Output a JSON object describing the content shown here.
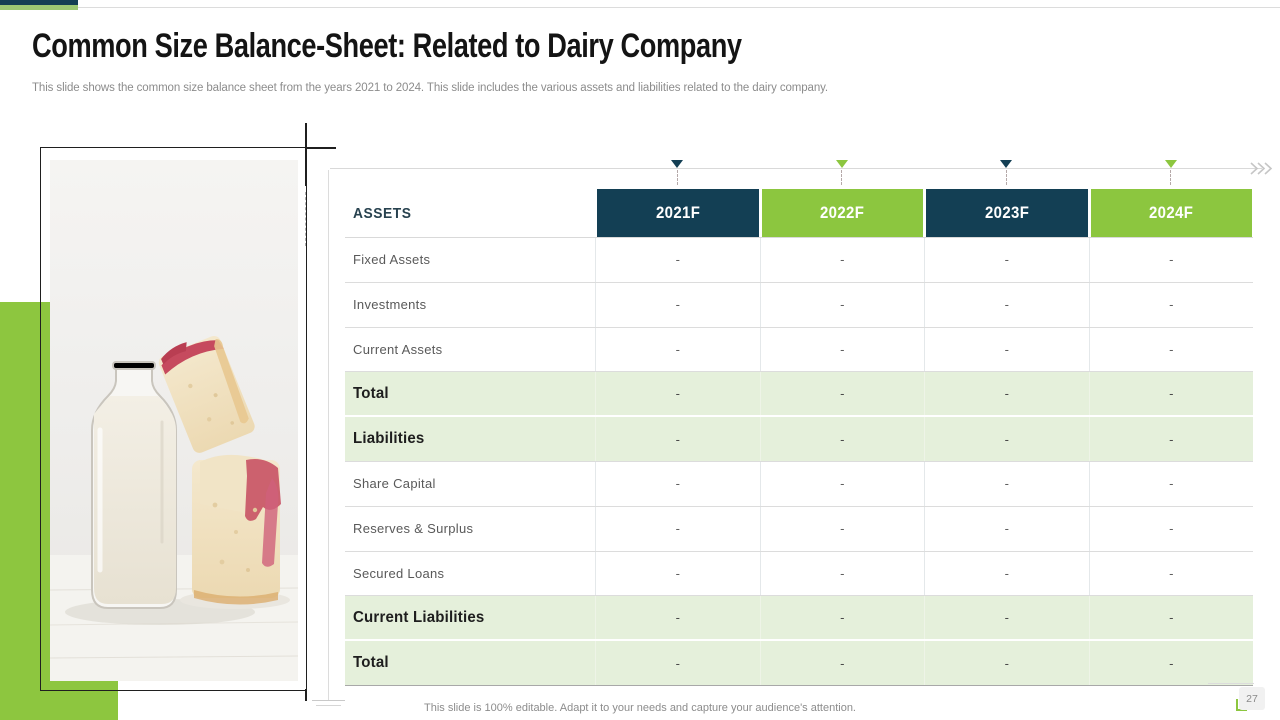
{
  "slide": {
    "title": "Common Size Balance-Sheet: Related to Dairy Company",
    "subtitle": "This slide shows the common size balance sheet from the years 2021 to 2024. This slide includes the various assets and liabilities related to the dairy company.",
    "footer": "This slide is 100% editable. Adapt it to your needs and capture your audience's attention.",
    "page_number": "27"
  },
  "colors": {
    "navy": "#133F54",
    "green": "#8CC63F",
    "muted_green_bar": "#9BC873",
    "green_block": "#8DC63F",
    "light_green_row": "#E5F0DB"
  },
  "image": {
    "description": "milk bottle with two slices of jam cake on a white table"
  },
  "table": {
    "header": {
      "label": "ASSETS",
      "years": [
        {
          "label": "2021F",
          "color": "navy"
        },
        {
          "label": "2022F",
          "color": "green"
        },
        {
          "label": "2023F",
          "color": "navy"
        },
        {
          "label": "2024F",
          "color": "green"
        }
      ]
    },
    "rows": [
      {
        "label": "Fixed Assets",
        "type": "normal",
        "values": [
          "-",
          "-",
          "-",
          "-"
        ]
      },
      {
        "label": "Investments",
        "type": "normal",
        "values": [
          "-",
          "-",
          "-",
          "-"
        ]
      },
      {
        "label": "Current Assets",
        "type": "normal",
        "values": [
          "-",
          "-",
          "-",
          "-"
        ]
      },
      {
        "label": "Total",
        "type": "highlight",
        "values": [
          "-",
          "-",
          "-",
          "-"
        ]
      },
      {
        "label": "Liabilities",
        "type": "highlight",
        "values": [
          "-",
          "-",
          "-",
          "-"
        ]
      },
      {
        "label": "Share Capital",
        "type": "normal",
        "values": [
          "-",
          "-",
          "-",
          "-"
        ]
      },
      {
        "label": "Reserves & Surplus",
        "type": "normal",
        "values": [
          "-",
          "-",
          "-",
          "-"
        ]
      },
      {
        "label": "Secured Loans",
        "type": "normal",
        "values": [
          "-",
          "-",
          "-",
          "-"
        ]
      },
      {
        "label": "Current Liabilities",
        "type": "highlight",
        "values": [
          "-",
          "-",
          "-",
          "-"
        ]
      },
      {
        "label": "Total",
        "type": "highlight",
        "values": [
          "-",
          "-",
          "-",
          "-"
        ]
      }
    ]
  }
}
